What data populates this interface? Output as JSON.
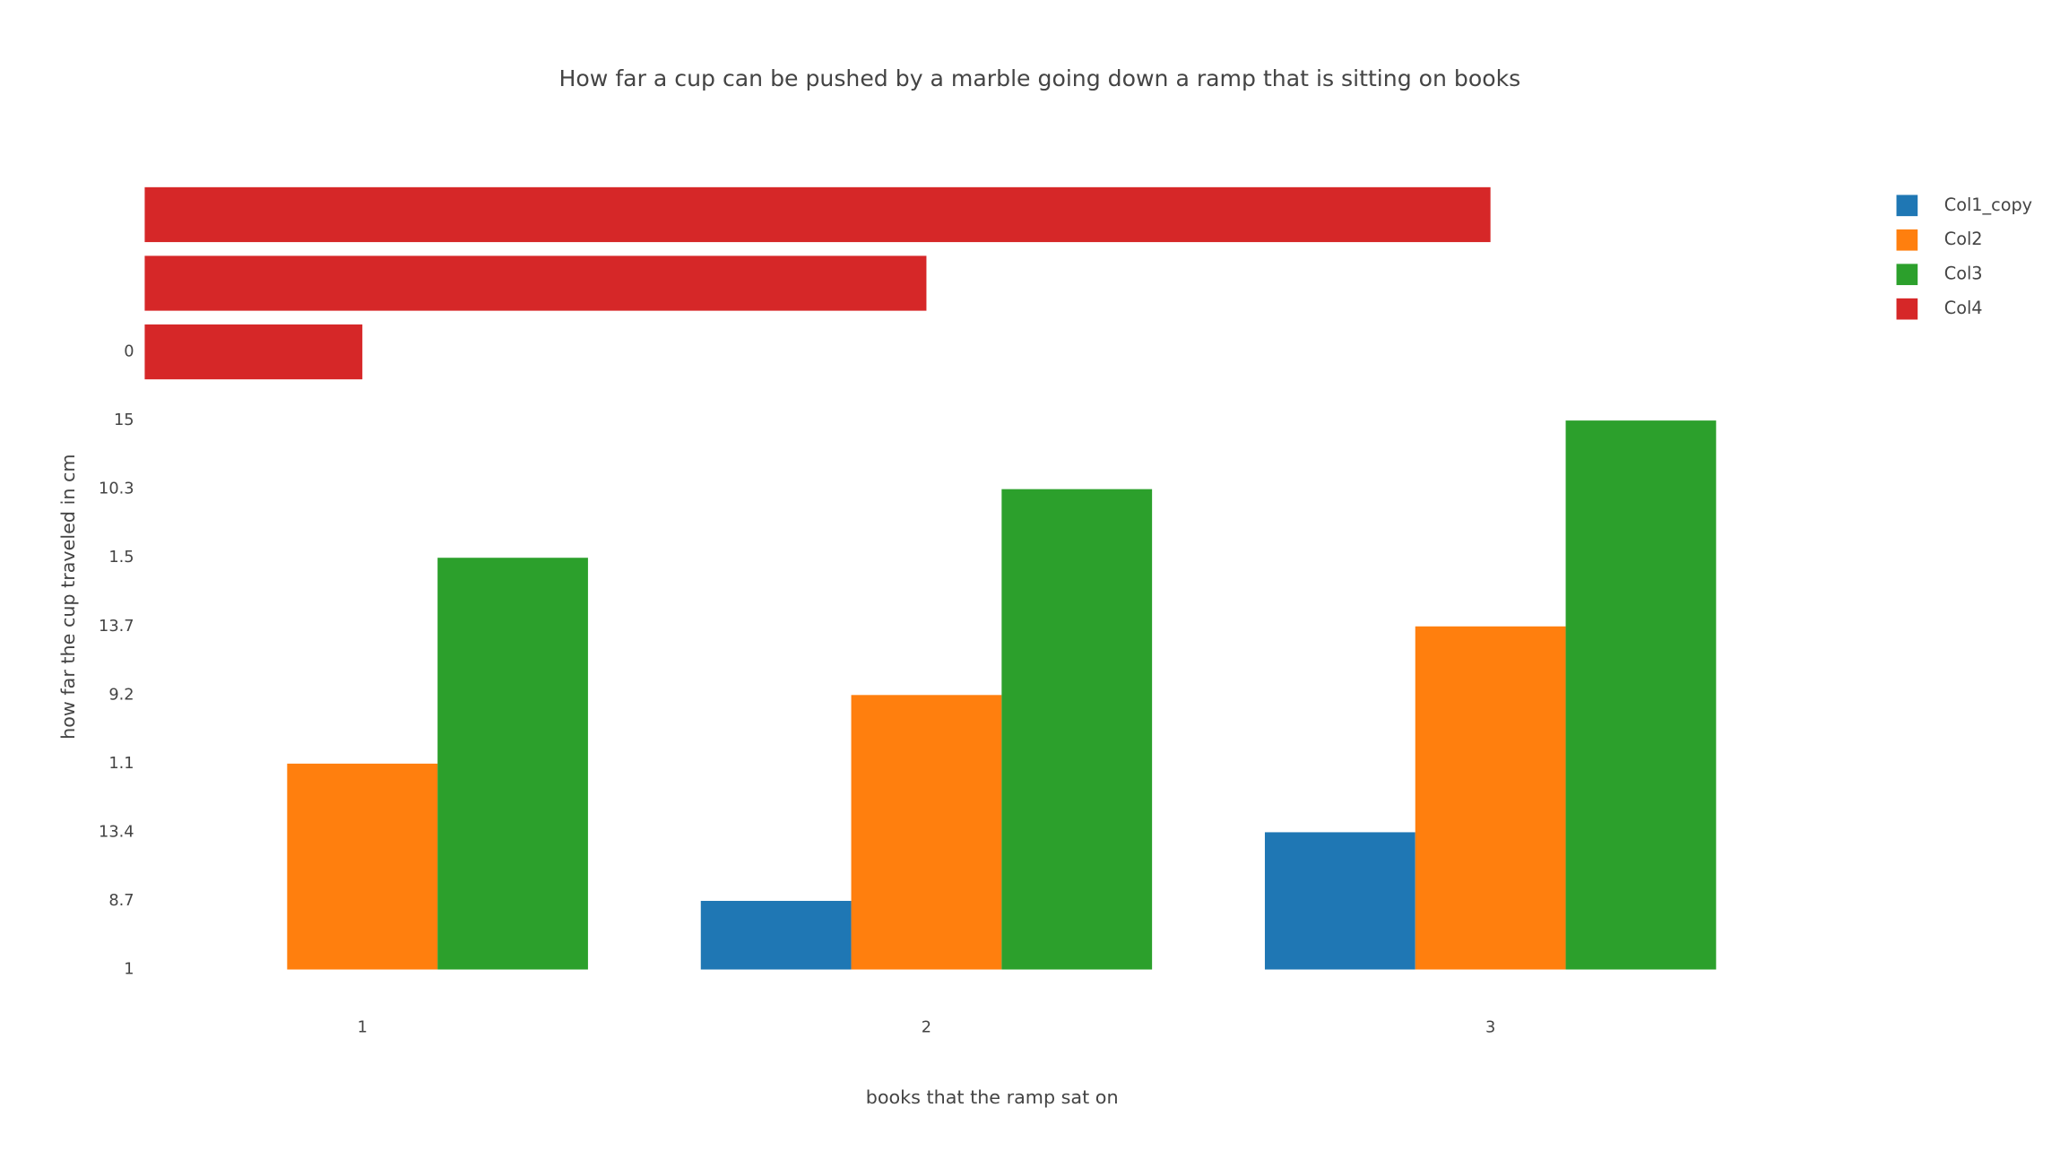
{
  "chart_data": {
    "type": "bar",
    "title": "How far a cup can be pushed by a marble going down a ramp that is sitting on books",
    "x_label": "books that the ramp sat on",
    "y_label": "how far the cup traveled in cm",
    "xlim": [
      0.6,
      3.4
    ],
    "xticks": [
      1,
      2,
      3
    ],
    "ycategories": [
      "1",
      "8.7",
      "13.4",
      "1.1",
      "9.2",
      "13.7",
      "1.5",
      "10.3",
      "15",
      "0",
      null,
      null
    ],
    "x": [
      1,
      2,
      3
    ],
    "series": [
      {
        "name": "Col1_copy",
        "color": "#1f77b4",
        "values": [
          1,
          8.7,
          13.4
        ]
      },
      {
        "name": "Col2",
        "color": "#ff7f0e",
        "values": [
          1.1,
          9.2,
          13.7
        ]
      },
      {
        "name": "Col3",
        "color": "#2ca02c",
        "values": [
          1.5,
          10.3,
          15
        ]
      },
      {
        "name": "Col4",
        "color": "#d62728",
        "orientation": "h",
        "y": [
          "0",
          null,
          null
        ],
        "values": [
          1,
          2,
          3
        ]
      }
    ]
  }
}
